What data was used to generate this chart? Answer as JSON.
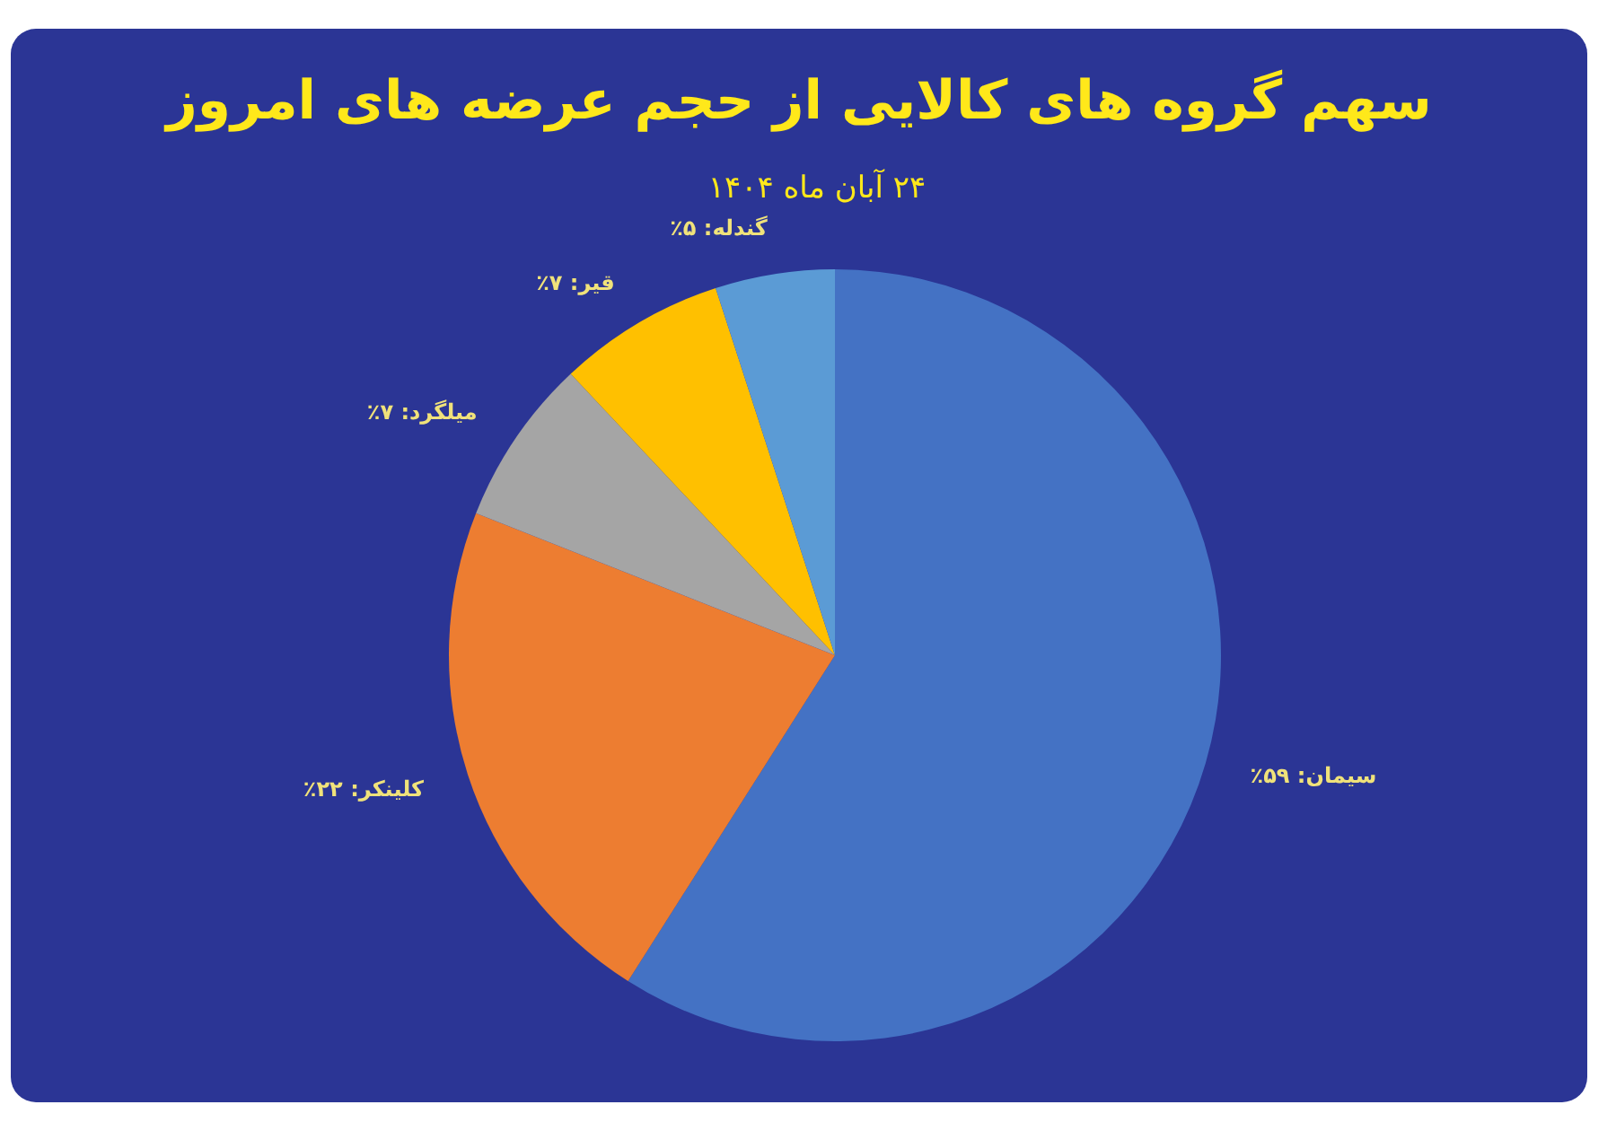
{
  "chart_data": {
    "type": "pie",
    "title": "سهم گروه های کالایی از حجم عرضه های امروز",
    "subtitle": "۲۴ آبان ماه ۱۴۰۴",
    "categories": [
      "سیمان",
      "کلینکر",
      "میلگرد",
      "قیر",
      "گندله"
    ],
    "values": [
      59,
      22,
      7,
      7,
      5
    ],
    "value_labels": [
      "۵۹٪",
      "۲۲٪",
      "۷٪",
      "۷٪",
      "۵٪"
    ],
    "colors": [
      "#4472c4",
      "#ed7d31",
      "#a5a5a5",
      "#ffc000",
      "#5b9bd5"
    ]
  }
}
